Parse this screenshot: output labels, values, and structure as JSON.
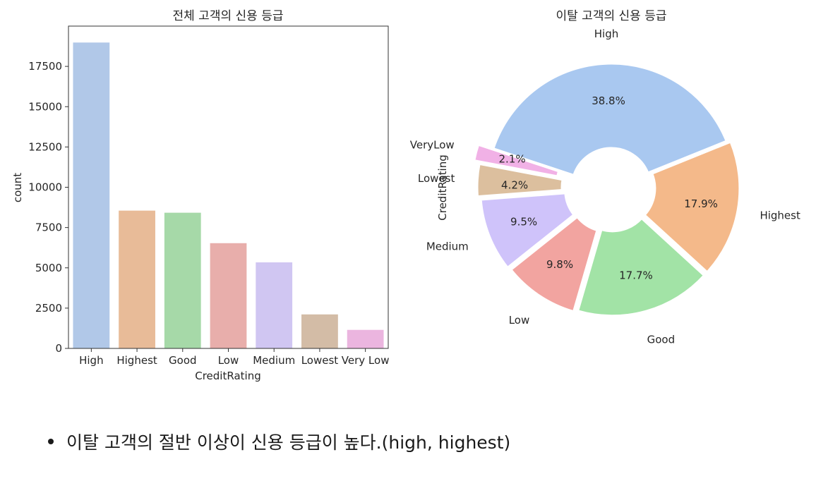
{
  "chart_data": [
    {
      "type": "bar",
      "title": "전체 고객의 신용 등급",
      "xlabel": "CreditRating",
      "ylabel": "count",
      "categories": [
        "High",
        "Highest",
        "Good",
        "Low",
        "Medium",
        "Lowest",
        "Very Low"
      ],
      "values": [
        18980,
        8550,
        8420,
        6530,
        5340,
        2110,
        1150
      ],
      "colors": [
        "#b1c8e8",
        "#e8bb98",
        "#a6d9a8",
        "#e8aeab",
        "#d0c6f2",
        "#d3bca6",
        "#ebb5df"
      ],
      "ylim": [
        0,
        20000
      ],
      "yticks": [
        0,
        2500,
        5000,
        7500,
        10000,
        12500,
        15000,
        17500
      ],
      "grid": false
    },
    {
      "type": "pie",
      "title": "이탈 고객의 신용 등급",
      "ylabel": "CreditRating",
      "donut": true,
      "labels": [
        "High",
        "VeryLow",
        "Lowest",
        "Medium",
        "Low",
        "Good",
        "Highest"
      ],
      "values": [
        38.8,
        2.1,
        4.2,
        9.5,
        9.8,
        17.7,
        17.9
      ],
      "pct_labels": [
        "38.8%",
        "2.1%",
        "4.2%",
        "9.5%",
        "9.8%",
        "17.7%",
        "17.9%"
      ],
      "colors": [
        "#a9c8f0",
        "#f1b1e6",
        "#dcbf9e",
        "#cfc3fa",
        "#f2a4a0",
        "#a2e3a6",
        "#f4b98a"
      ]
    }
  ],
  "note": {
    "text": "이탈 고객의 절반 이상이 신용 등급이 높다.(high, highest)"
  }
}
